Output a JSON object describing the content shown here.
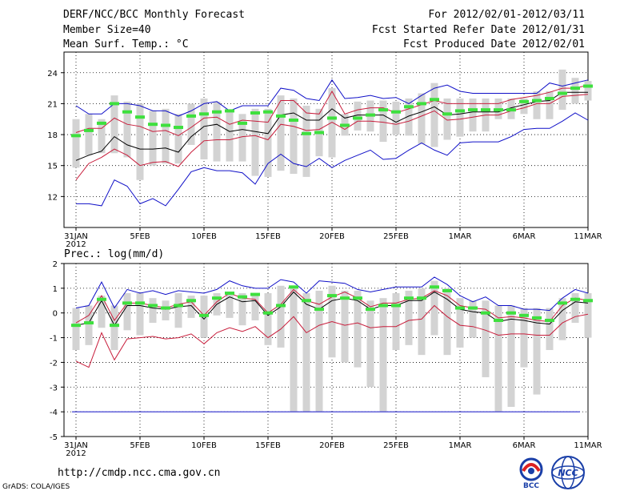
{
  "header": {
    "title": "DERF/NCC/BCC Monthly Forecast",
    "member_size": "Member Size=40",
    "variable": "Mean Surf. Temp.: °C",
    "period": "For 2012/02/01-2012/03/11",
    "started_refer": "Fcst Started Refer Date 2012/01/31",
    "produced": "Fcst Produced Date 2012/02/01"
  },
  "footer": {
    "url": "http://cmdp.ncc.cma.gov.cn",
    "credit": "GrADS: COLA/IGES",
    "logo_bcc": "BCC",
    "logo_ncc": "NCC"
  },
  "colors": {
    "max_min": "#1010c8",
    "spread": "#c81e3c",
    "mean": "#000000",
    "median": "#2e9c2e",
    "bar": "#d3d3d3",
    "green": "#3ee03e"
  },
  "chart_data": [
    {
      "type": "line",
      "title": "Mean Surf. Temp.: °C",
      "x_ticks": [
        "31JAN",
        "5FEB",
        "10FEB",
        "15FEB",
        "20FEB",
        "25FEB",
        "1MAR",
        "6MAR",
        "11MAR"
      ],
      "x_year": "2012",
      "ylim": [
        9,
        26
      ],
      "yticks": [
        12,
        15,
        18,
        21,
        24
      ],
      "days": 41,
      "series": {
        "max": [
          20.8,
          20,
          20,
          21,
          21,
          20.8,
          20.3,
          20.3,
          19.8,
          20.3,
          21,
          21.2,
          20.3,
          20.8,
          20.8,
          20.8,
          22.5,
          22.3,
          21.5,
          21.3,
          23.3,
          21.5,
          21.6,
          21.8,
          21.5,
          21.6,
          21,
          21.8,
          22.5,
          22.8,
          22.2,
          22,
          22,
          22,
          22,
          22,
          22,
          23,
          22.7,
          23,
          23.3
        ],
        "upper": [
          18.2,
          18.6,
          18.6,
          19.6,
          19,
          18.8,
          18.3,
          18.4,
          17.9,
          18.7,
          19.6,
          19.7,
          19,
          19.4,
          19.3,
          19.2,
          21.3,
          21.3,
          20.1,
          20,
          22.2,
          20,
          20.4,
          20.6,
          20.6,
          20.1,
          20.5,
          20.9,
          21.3,
          21,
          21,
          21,
          21,
          21,
          21.4,
          21.6,
          21.8,
          22.1,
          22.5,
          22.5,
          22.8
        ],
        "mean": [
          15.5,
          16,
          16.4,
          17.8,
          17,
          16.6,
          16.6,
          16.7,
          16.3,
          17.8,
          18.8,
          19,
          18.3,
          18.5,
          18.3,
          18.1,
          19.9,
          20.1,
          19.4,
          19.4,
          20.5,
          19.6,
          19.9,
          19.9,
          19.9,
          19.2,
          19.8,
          20.2,
          20.7,
          19.9,
          20,
          20.2,
          20.2,
          20.2,
          20.6,
          20.9,
          21.2,
          21.3,
          22.1,
          22.1,
          22.1
        ],
        "lower": [
          13.6,
          15.2,
          15.8,
          16.6,
          16,
          15,
          15.3,
          15.4,
          14.9,
          16.3,
          17.4,
          17.5,
          17.5,
          17.8,
          17.9,
          17.5,
          19,
          18.8,
          18.4,
          18.5,
          19.2,
          18.5,
          19.3,
          19.3,
          19.2,
          19,
          19.3,
          19.8,
          20.3,
          19.4,
          19.5,
          19.7,
          19.9,
          19.9,
          20.3,
          20.6,
          21,
          21,
          21.7,
          21.8,
          21.9
        ],
        "min": [
          11.3,
          11.3,
          11.1,
          13.6,
          13,
          11.3,
          11.8,
          11.1,
          12.7,
          14.4,
          14.8,
          14.5,
          14.5,
          14.3,
          13.2,
          15.2,
          16.1,
          15.2,
          14.9,
          15.7,
          14.8,
          15.5,
          16,
          16.5,
          15.6,
          15.7,
          16.5,
          17.2,
          16.5,
          16,
          17.2,
          17.3,
          17.3,
          17.3,
          17.8,
          18.5,
          18.6,
          18.6,
          19.3,
          20.1,
          19.4
        ],
        "median": [
          17.9,
          18.4,
          19.1,
          21,
          20.2,
          19.7,
          19,
          18.9,
          18.7,
          19.8,
          20,
          20.2,
          20.3,
          19.1,
          20.1,
          20.2,
          19.8,
          19.4,
          18.1,
          18.2,
          19.6,
          18.9,
          19.6,
          19.9,
          20.4,
          20.2,
          20.7,
          21,
          21.4,
          20,
          20.3,
          20.4,
          20.4,
          20.4,
          20.4,
          21.2,
          21.3,
          21.5,
          22,
          22.5,
          22.7
        ],
        "bar_top": [
          19.5,
          20,
          19.5,
          21.8,
          21.2,
          21,
          20.3,
          20.5,
          20,
          21,
          21.5,
          21.2,
          20.2,
          20,
          20.5,
          20.5,
          21.8,
          21.5,
          20.8,
          20.5,
          22.5,
          20,
          21.2,
          21.3,
          21.3,
          21.2,
          21.5,
          22,
          23,
          21.5,
          21.5,
          21.5,
          21.5,
          21.5,
          21.5,
          21.5,
          22.2,
          22.2,
          24.3,
          23.5,
          23.2
        ],
        "bar_bot": [
          14.8,
          16,
          16.2,
          16.2,
          15.8,
          13.6,
          15,
          15.2,
          15.2,
          17,
          15.6,
          15.4,
          15.4,
          15.4,
          14,
          13.9,
          14.5,
          14.2,
          13.9,
          15.9,
          15.8,
          17.9,
          18.4,
          18.3,
          17.3,
          18,
          17.9,
          17.1,
          16.8,
          17.5,
          17.8,
          18.3,
          18.3,
          19.5,
          19.5,
          20,
          19.5,
          19.5,
          20.4,
          21,
          21.3
        ]
      }
    },
    {
      "type": "line",
      "title": "Prec.: log(mm/d)",
      "x_ticks": [
        "31JAN",
        "5FEB",
        "10FEB",
        "15FEB",
        "20FEB",
        "25FEB",
        "1MAR",
        "6MAR",
        "11MAR"
      ],
      "x_year": "2012",
      "ylim": [
        -5,
        2
      ],
      "yticks": [
        -5,
        -4,
        -3,
        -2,
        -1,
        0,
        1,
        2
      ],
      "days": 41,
      "reference_line": -4,
      "series": {
        "max": [
          0.2,
          0.3,
          1.25,
          0.2,
          0.95,
          0.8,
          0.9,
          0.75,
          0.9,
          0.85,
          0.8,
          0.95,
          1.3,
          1.1,
          1,
          1,
          1.35,
          1.25,
          0.8,
          1.3,
          1.25,
          1.2,
          0.95,
          0.85,
          0.95,
          1.05,
          1.05,
          1.05,
          1.45,
          1.15,
          0.7,
          0.45,
          0.65,
          0.3,
          0.3,
          0.15,
          0.15,
          0.1,
          0.6,
          0.95,
          0.8
        ],
        "upper": [
          -0.4,
          -0.1,
          0.7,
          -0.3,
          0.4,
          0.4,
          0.3,
          0.2,
          0.35,
          0.45,
          -0.1,
          0.45,
          0.8,
          0.6,
          0.55,
          0,
          0.35,
          0.95,
          0.5,
          0.35,
          0.65,
          0.85,
          0.6,
          0.25,
          0.4,
          0.4,
          0.55,
          0.6,
          0.9,
          0.7,
          0.3,
          0.2,
          0.15,
          -0.2,
          -0.15,
          -0.2,
          -0.3,
          -0.35,
          0.3,
          0.6,
          0.5
        ],
        "mean": [
          -0.5,
          -0.4,
          0.5,
          -0.5,
          0.3,
          0.3,
          0.2,
          0.15,
          0.25,
          0.3,
          -0.25,
          0.35,
          0.65,
          0.45,
          0.5,
          -0.1,
          0.25,
          0.85,
          0.35,
          0.15,
          0.5,
          0.6,
          0.5,
          0.15,
          0.3,
          0.3,
          0.5,
          0.5,
          0.85,
          0.55,
          0.15,
          0.05,
          0,
          -0.35,
          -0.25,
          -0.3,
          -0.4,
          -0.45,
          0.1,
          0.45,
          0.4
        ],
        "lower": [
          -1.95,
          -2.2,
          -0.8,
          -1.9,
          -1.05,
          -1,
          -0.95,
          -1.05,
          -1,
          -0.85,
          -1.25,
          -0.8,
          -0.6,
          -0.75,
          -0.55,
          -1,
          -0.65,
          -0.15,
          -0.8,
          -0.5,
          -0.35,
          -0.5,
          -0.4,
          -0.6,
          -0.55,
          -0.55,
          -0.3,
          -0.25,
          0.3,
          -0.15,
          -0.5,
          -0.55,
          -0.7,
          -0.9,
          -0.85,
          -0.85,
          -0.9,
          -0.9,
          -0.4,
          -0.15,
          -0.05
        ],
        "min": [
          -4,
          -4,
          -4,
          -4,
          -4,
          -4,
          -4,
          -4,
          -4,
          -4,
          -4,
          -4,
          -4,
          -4,
          -4,
          -4,
          -4,
          -4,
          -4,
          -4,
          -4,
          -4,
          -4,
          -4,
          -4,
          -4,
          -4,
          -4,
          -4,
          -4,
          -4,
          -4,
          -4,
          -4,
          -4,
          -4,
          -4,
          -4,
          -4,
          -4,
          -4
        ],
        "median": [
          -0.5,
          -0.4,
          0.55,
          -0.5,
          0.4,
          0.4,
          0.3,
          0.2,
          0.3,
          0.5,
          -0.1,
          0.6,
          0.8,
          0.65,
          0.75,
          0,
          0.3,
          1.05,
          0.5,
          0.15,
          0.7,
          0.6,
          0.6,
          0.15,
          0.3,
          0.3,
          0.6,
          0.6,
          1.05,
          0.9,
          0.2,
          0.2,
          0,
          -0.3,
          0,
          -0.1,
          -0.2,
          -0.3,
          0.4,
          0.55,
          0.5
        ],
        "bar_top": [
          0.2,
          0.3,
          0.7,
          0.3,
          0.8,
          0.8,
          0.6,
          0.5,
          0.8,
          0.7,
          0.7,
          0.8,
          0.8,
          0.8,
          0.8,
          0.8,
          1.1,
          1.1,
          0.8,
          0.9,
          1.1,
          0.9,
          0.9,
          0.5,
          0.6,
          0.8,
          0.9,
          1,
          1.3,
          1,
          0.6,
          0.5,
          0.5,
          0.3,
          0.3,
          0.2,
          0.2,
          0.2,
          0.6,
          0.8,
          0.8
        ],
        "bar_bot": [
          -1.5,
          -1.3,
          -0.6,
          -1.5,
          -0.7,
          -0.9,
          -0.4,
          -0.3,
          -0.6,
          -0.2,
          -1,
          -0.1,
          -0.2,
          -0.5,
          -0.3,
          -1.3,
          -1.4,
          -4,
          -4,
          -4,
          -1.8,
          -2,
          -2.2,
          -3,
          -4,
          -1.5,
          -1.3,
          -1.7,
          -0.9,
          -1.7,
          -1.4,
          -1,
          -2.6,
          -4,
          -3.8,
          -2.2,
          -3.3,
          -1.5,
          -1.1,
          -0.4,
          -1
        ]
      }
    }
  ]
}
